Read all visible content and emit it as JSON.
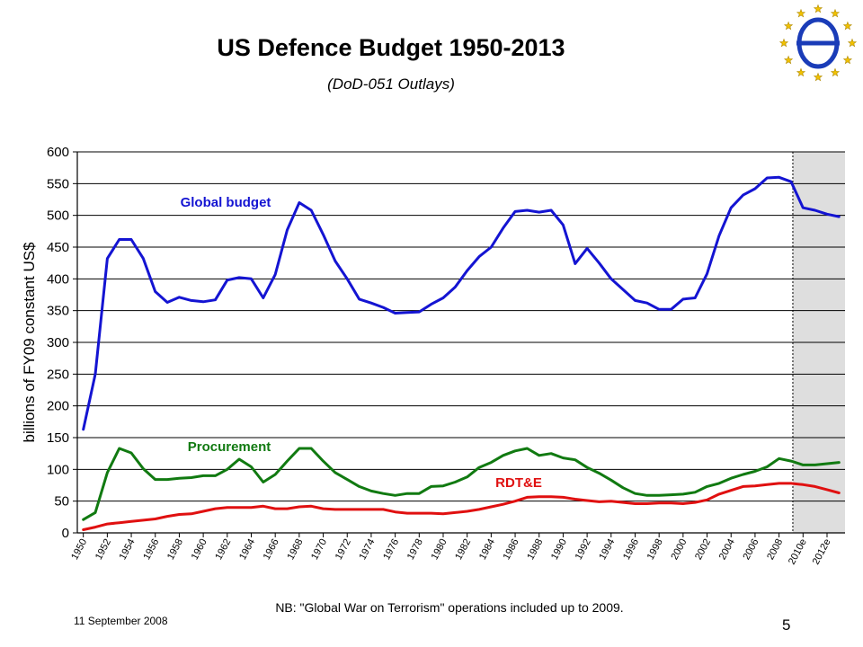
{
  "header": {
    "title": "US Defence Budget 1950-2013",
    "subtitle": "(DoD-051 Outlays)"
  },
  "logo": {
    "icon": "eu-stars-logo-icon"
  },
  "footer": {
    "date": "11 September 2008",
    "note": "NB: \"Global War on Terrorism\" operations included up to 2009.",
    "page_number": "5"
  },
  "chart_data": {
    "type": "line",
    "ylabel": "billions of FY09 constant US$",
    "ylim": [
      0,
      600
    ],
    "yticks": [
      0,
      50,
      100,
      150,
      200,
      250,
      300,
      350,
      400,
      450,
      500,
      550,
      600
    ],
    "grid": true,
    "x": [
      1950,
      1951,
      1952,
      1953,
      1954,
      1955,
      1956,
      1957,
      1958,
      1959,
      1960,
      1961,
      1962,
      1963,
      1964,
      1965,
      1966,
      1967,
      1968,
      1969,
      1970,
      1971,
      1972,
      1973,
      1974,
      1975,
      1976,
      1977,
      1978,
      1979,
      1980,
      1981,
      1982,
      1983,
      1984,
      1985,
      1986,
      1987,
      1988,
      1989,
      1990,
      1991,
      1992,
      1993,
      1994,
      1995,
      1996,
      1997,
      1998,
      1999,
      2000,
      2001,
      2002,
      2003,
      2004,
      2005,
      2006,
      2007,
      2008,
      2009,
      2010,
      2011,
      2012,
      2013
    ],
    "xtick_labels": [
      "1950",
      "1952",
      "1954",
      "1956",
      "1958",
      "1960",
      "1962",
      "1964",
      "1966",
      "1968",
      "1970",
      "1972",
      "1974",
      "1976",
      "1978",
      "1980",
      "1982",
      "1984",
      "1986",
      "1988",
      "1990",
      "1992",
      "1994",
      "1996",
      "1998",
      "2000",
      "2002",
      "2004",
      "2006",
      "2008",
      "2010e",
      "2012e"
    ],
    "estimate_region": [
      2009,
      2013
    ],
    "series": [
      {
        "name": "Global budget",
        "color": "#1414d2",
        "values": [
          163,
          250,
          432,
          462,
          462,
          432,
          380,
          363,
          371,
          366,
          364,
          367,
          398,
          402,
          400,
          370,
          407,
          477,
          520,
          508,
          470,
          428,
          400,
          368,
          362,
          355,
          346,
          347,
          348,
          360,
          370,
          387,
          413,
          435,
          450,
          480,
          506,
          508,
          505,
          508,
          485,
          424,
          448,
          425,
          400,
          383,
          366,
          362,
          352,
          352,
          368,
          370,
          408,
          468,
          512,
          532,
          542,
          559,
          560,
          553,
          512,
          508,
          502,
          498
        ]
      },
      {
        "name": "Procurement",
        "color": "#117a11",
        "values": [
          21,
          32,
          95,
          133,
          126,
          101,
          84,
          84,
          86,
          87,
          90,
          90,
          100,
          116,
          104,
          80,
          92,
          113,
          133,
          133,
          113,
          95,
          84,
          73,
          66,
          62,
          59,
          62,
          62,
          73,
          74,
          80,
          88,
          103,
          111,
          122,
          129,
          133,
          122,
          125,
          118,
          115,
          103,
          94,
          83,
          71,
          62,
          59,
          59,
          60,
          61,
          64,
          73,
          78,
          86,
          92,
          97,
          104,
          117,
          113,
          107,
          107,
          109,
          111
        ]
      },
      {
        "name": "RDT&E",
        "color": "#e01010",
        "values": [
          5,
          9,
          14,
          16,
          18,
          20,
          22,
          26,
          29,
          30,
          34,
          38,
          40,
          40,
          40,
          42,
          38,
          38,
          41,
          42,
          38,
          37,
          37,
          37,
          37,
          37,
          33,
          31,
          31,
          31,
          30,
          32,
          34,
          37,
          41,
          45,
          50,
          56,
          57,
          57,
          56,
          53,
          51,
          49,
          50,
          48,
          46,
          46,
          47,
          47,
          46,
          48,
          52,
          61,
          67,
          73,
          74,
          76,
          78,
          78,
          76,
          73,
          68,
          63
        ]
      }
    ]
  }
}
